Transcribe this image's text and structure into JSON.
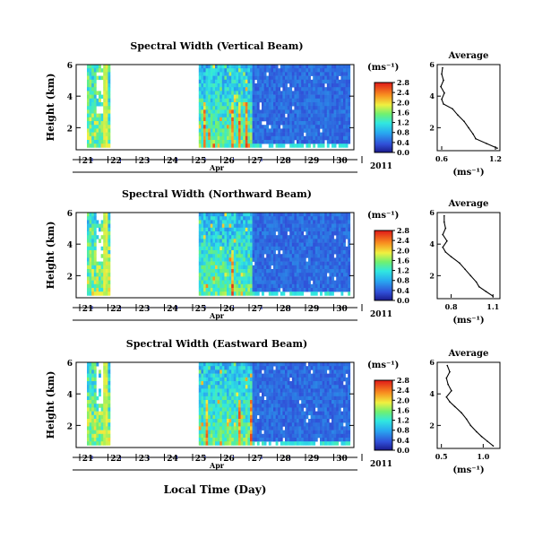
{
  "figure": {
    "xlabel": "Local Time (Day)",
    "month_label": "Apr",
    "year_label": "2011"
  },
  "chart_data": [
    {
      "type": "heatmap",
      "title": "Spectral Width (Vertical Beam)",
      "ylabel": "Height (km)",
      "xlabel": "Local Time (Day)",
      "x_ticks": [
        "21",
        "22",
        "23",
        "24",
        "25",
        "26",
        "27",
        "28",
        "29",
        "30"
      ],
      "y_ticks": [
        2,
        4,
        6
      ],
      "ylim": [
        0.6,
        6
      ],
      "colorbar": {
        "unit": "(ms⁻¹)",
        "ticks": [
          "0.0",
          "0.4",
          "0.8",
          "1.2",
          "1.6",
          "2.0",
          "2.4",
          "2.8"
        ],
        "range": [
          0,
          2.8
        ]
      },
      "data_gap_days": [
        22,
        25
      ],
      "average_profile": {
        "title": "Average",
        "xlabel": "(ms⁻¹)",
        "x_ticks": [
          "0.6",
          "1.2"
        ],
        "xlim": [
          0.55,
          1.25
        ],
        "y_ticks": [
          2,
          4,
          6
        ],
        "ylim": [
          0.6,
          6
        ],
        "heights": [
          0.7,
          1.0,
          1.3,
          1.6,
          2.0,
          2.4,
          2.8,
          3.2,
          3.5,
          3.8,
          4.2,
          4.6,
          5.0,
          5.4,
          5.8
        ],
        "values": [
          1.22,
          1.1,
          0.98,
          0.95,
          0.9,
          0.85,
          0.78,
          0.72,
          0.62,
          0.6,
          0.63,
          0.59,
          0.62,
          0.6,
          0.61
        ]
      }
    },
    {
      "type": "heatmap",
      "title": "Spectral Width (Northward Beam)",
      "ylabel": "Height (km)",
      "xlabel": "Local Time (Day)",
      "x_ticks": [
        "21",
        "22",
        "23",
        "24",
        "25",
        "26",
        "27",
        "28",
        "29",
        "30"
      ],
      "y_ticks": [
        2,
        4,
        6
      ],
      "ylim": [
        0.6,
        6
      ],
      "colorbar": {
        "unit": "(ms⁻¹)",
        "ticks": [
          "0.0",
          "0.4",
          "0.8",
          "1.2",
          "1.6",
          "2.0",
          "2.4",
          "2.8"
        ],
        "range": [
          0,
          2.8
        ]
      },
      "data_gap_days": [
        22,
        25
      ],
      "average_profile": {
        "title": "Average",
        "xlabel": "(ms⁻¹)",
        "x_ticks": [
          "0.8",
          "1.1"
        ],
        "xlim": [
          0.7,
          1.15
        ],
        "y_ticks": [
          2,
          4,
          6
        ],
        "ylim": [
          0.6,
          6
        ],
        "heights": [
          0.7,
          1.0,
          1.3,
          1.6,
          2.0,
          2.4,
          2.8,
          3.2,
          3.5,
          3.8,
          4.2,
          4.6,
          5.0,
          5.4,
          5.8
        ],
        "values": [
          1.1,
          1.05,
          1.0,
          0.98,
          0.94,
          0.9,
          0.86,
          0.8,
          0.76,
          0.74,
          0.77,
          0.74,
          0.76,
          0.75,
          0.75
        ]
      }
    },
    {
      "type": "heatmap",
      "title": "Spectral Width (Eastward Beam)",
      "ylabel": "Height (km)",
      "xlabel": "Local Time (Day)",
      "x_ticks": [
        "21",
        "22",
        "23",
        "24",
        "25",
        "26",
        "27",
        "28",
        "29",
        "30"
      ],
      "y_ticks": [
        2,
        4,
        6
      ],
      "ylim": [
        0.6,
        6
      ],
      "colorbar": {
        "unit": "(ms⁻¹)",
        "ticks": [
          "0.0",
          "0.4",
          "0.8",
          "1.2",
          "1.6",
          "2.0",
          "2.4",
          "2.8"
        ],
        "range": [
          0,
          2.8
        ]
      },
      "data_gap_days": [
        22,
        25
      ],
      "average_profile": {
        "title": "Average",
        "xlabel": "(ms⁻¹)",
        "x_ticks": [
          "0.5",
          "1.0"
        ],
        "xlim": [
          0.45,
          1.2
        ],
        "y_ticks": [
          2,
          4,
          6
        ],
        "ylim": [
          0.6,
          6
        ],
        "heights": [
          0.7,
          1.0,
          1.3,
          1.6,
          2.0,
          2.4,
          2.8,
          3.2,
          3.5,
          3.8,
          4.2,
          4.6,
          5.0,
          5.4,
          5.8
        ],
        "values": [
          1.12,
          1.05,
          0.98,
          0.92,
          0.85,
          0.8,
          0.74,
          0.66,
          0.6,
          0.56,
          0.62,
          0.58,
          0.56,
          0.6,
          0.57
        ]
      }
    }
  ]
}
